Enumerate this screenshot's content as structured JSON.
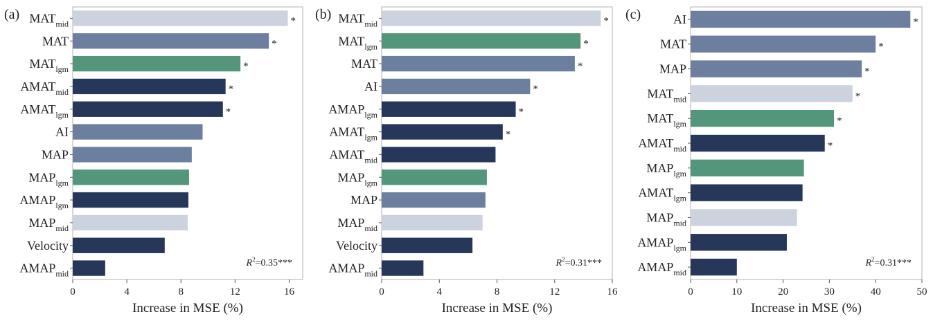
{
  "chart_data": [
    {
      "type": "bar",
      "orientation": "horizontal",
      "panel_label": "(a)",
      "xlabel": "Increase in MSE (%)",
      "xlim": [
        0,
        17
      ],
      "xticks": [
        0,
        4,
        8,
        12,
        16
      ],
      "annotation": {
        "r2_prefix": "R",
        "r2_sup": "2",
        "r2_text": "=0.35***"
      },
      "bars": [
        {
          "label": "MAT",
          "sub": "mid",
          "value": 15.9,
          "sig": "*",
          "color": "#ccd3df"
        },
        {
          "label": "MAT",
          "sub": "",
          "value": 14.5,
          "sig": "*",
          "color": "#6c7f9e"
        },
        {
          "label": "MAT",
          "sub": "lgm",
          "value": 12.4,
          "sig": "*",
          "color": "#54967b"
        },
        {
          "label": "AMAT",
          "sub": "mid",
          "value": 11.3,
          "sig": "*",
          "color": "#263759"
        },
        {
          "label": "AMAT",
          "sub": "lgm",
          "value": 11.1,
          "sig": "*",
          "color": "#263759"
        },
        {
          "label": "AI",
          "sub": "",
          "value": 9.6,
          "sig": "",
          "color": "#6c7f9e"
        },
        {
          "label": "MAP",
          "sub": "",
          "value": 8.8,
          "sig": "",
          "color": "#6c7f9e"
        },
        {
          "label": "MAP",
          "sub": "lgm",
          "value": 8.6,
          "sig": "",
          "color": "#54967b"
        },
        {
          "label": "AMAP",
          "sub": "lgm",
          "value": 8.55,
          "sig": "",
          "color": "#263759"
        },
        {
          "label": "MAP",
          "sub": "mid",
          "value": 8.5,
          "sig": "",
          "color": "#ccd3df"
        },
        {
          "label": "Velocity",
          "sub": "",
          "value": 6.8,
          "sig": "",
          "color": "#263759"
        },
        {
          "label": "AMAP",
          "sub": "mid",
          "value": 2.4,
          "sig": "",
          "color": "#263759"
        }
      ]
    },
    {
      "type": "bar",
      "orientation": "horizontal",
      "panel_label": "(b)",
      "xlabel": "Increase in MSE (%)",
      "xlim": [
        0,
        16
      ],
      "xticks": [
        0,
        4,
        8,
        12,
        16
      ],
      "annotation": {
        "r2_prefix": "R",
        "r2_sup": "2",
        "r2_text": "=0.31***"
      },
      "bars": [
        {
          "label": "MAT",
          "sub": "mid",
          "value": 15.2,
          "sig": "*",
          "color": "#ccd3df"
        },
        {
          "label": "MAT",
          "sub": "lgm",
          "value": 13.8,
          "sig": "*",
          "color": "#54967b"
        },
        {
          "label": "MAT",
          "sub": "",
          "value": 13.4,
          "sig": "*",
          "color": "#6c7f9e"
        },
        {
          "label": "AI",
          "sub": "",
          "value": 10.3,
          "sig": "*",
          "color": "#6c7f9e"
        },
        {
          "label": "AMAP",
          "sub": "lgm",
          "value": 9.3,
          "sig": "*",
          "color": "#263759"
        },
        {
          "label": "AMAT",
          "sub": "lgm",
          "value": 8.4,
          "sig": "*",
          "color": "#263759"
        },
        {
          "label": "AMAT",
          "sub": "mid",
          "value": 7.9,
          "sig": "",
          "color": "#263759"
        },
        {
          "label": "MAP",
          "sub": "lgm",
          "value": 7.3,
          "sig": "",
          "color": "#54967b"
        },
        {
          "label": "MAP",
          "sub": "",
          "value": 7.2,
          "sig": "",
          "color": "#6c7f9e"
        },
        {
          "label": "MAP",
          "sub": "mid",
          "value": 7.0,
          "sig": "",
          "color": "#ccd3df"
        },
        {
          "label": "Velocity",
          "sub": "",
          "value": 6.3,
          "sig": "",
          "color": "#263759"
        },
        {
          "label": "AMAP",
          "sub": "mid",
          "value": 2.9,
          "sig": "",
          "color": "#263759"
        }
      ]
    },
    {
      "type": "bar",
      "orientation": "horizontal",
      "panel_label": "(c)",
      "xlabel": "Increase in MSE (%)",
      "xlim": [
        0,
        50
      ],
      "xticks": [
        0,
        10,
        20,
        30,
        40,
        50
      ],
      "annotation": {
        "r2_prefix": "R",
        "r2_sup": "2",
        "r2_text": "=0.31***"
      },
      "bars": [
        {
          "label": "AI",
          "sub": "",
          "value": 47.5,
          "sig": "*",
          "color": "#6c7f9e"
        },
        {
          "label": "MAT",
          "sub": "",
          "value": 40.0,
          "sig": "*",
          "color": "#6c7f9e"
        },
        {
          "label": "MAP",
          "sub": "",
          "value": 37.0,
          "sig": "*",
          "color": "#6c7f9e"
        },
        {
          "label": "MAT",
          "sub": "mid",
          "value": 35.0,
          "sig": "*",
          "color": "#ccd3df"
        },
        {
          "label": "MAT",
          "sub": "lgm",
          "value": 31.0,
          "sig": "*",
          "color": "#54967b"
        },
        {
          "label": "AMAT",
          "sub": "mid",
          "value": 29.0,
          "sig": "*",
          "color": "#263759"
        },
        {
          "label": "MAP",
          "sub": "lgm",
          "value": 24.5,
          "sig": "",
          "color": "#54967b"
        },
        {
          "label": "AMAT",
          "sub": "lgm",
          "value": 24.2,
          "sig": "",
          "color": "#263759"
        },
        {
          "label": "MAP",
          "sub": "mid",
          "value": 23.0,
          "sig": "",
          "color": "#ccd3df"
        },
        {
          "label": "AMAP",
          "sub": "lgm",
          "value": 20.8,
          "sig": "",
          "color": "#263759"
        },
        {
          "label": "AMAP",
          "sub": "mid",
          "value": 10.0,
          "sig": "",
          "color": "#263759"
        }
      ]
    }
  ]
}
